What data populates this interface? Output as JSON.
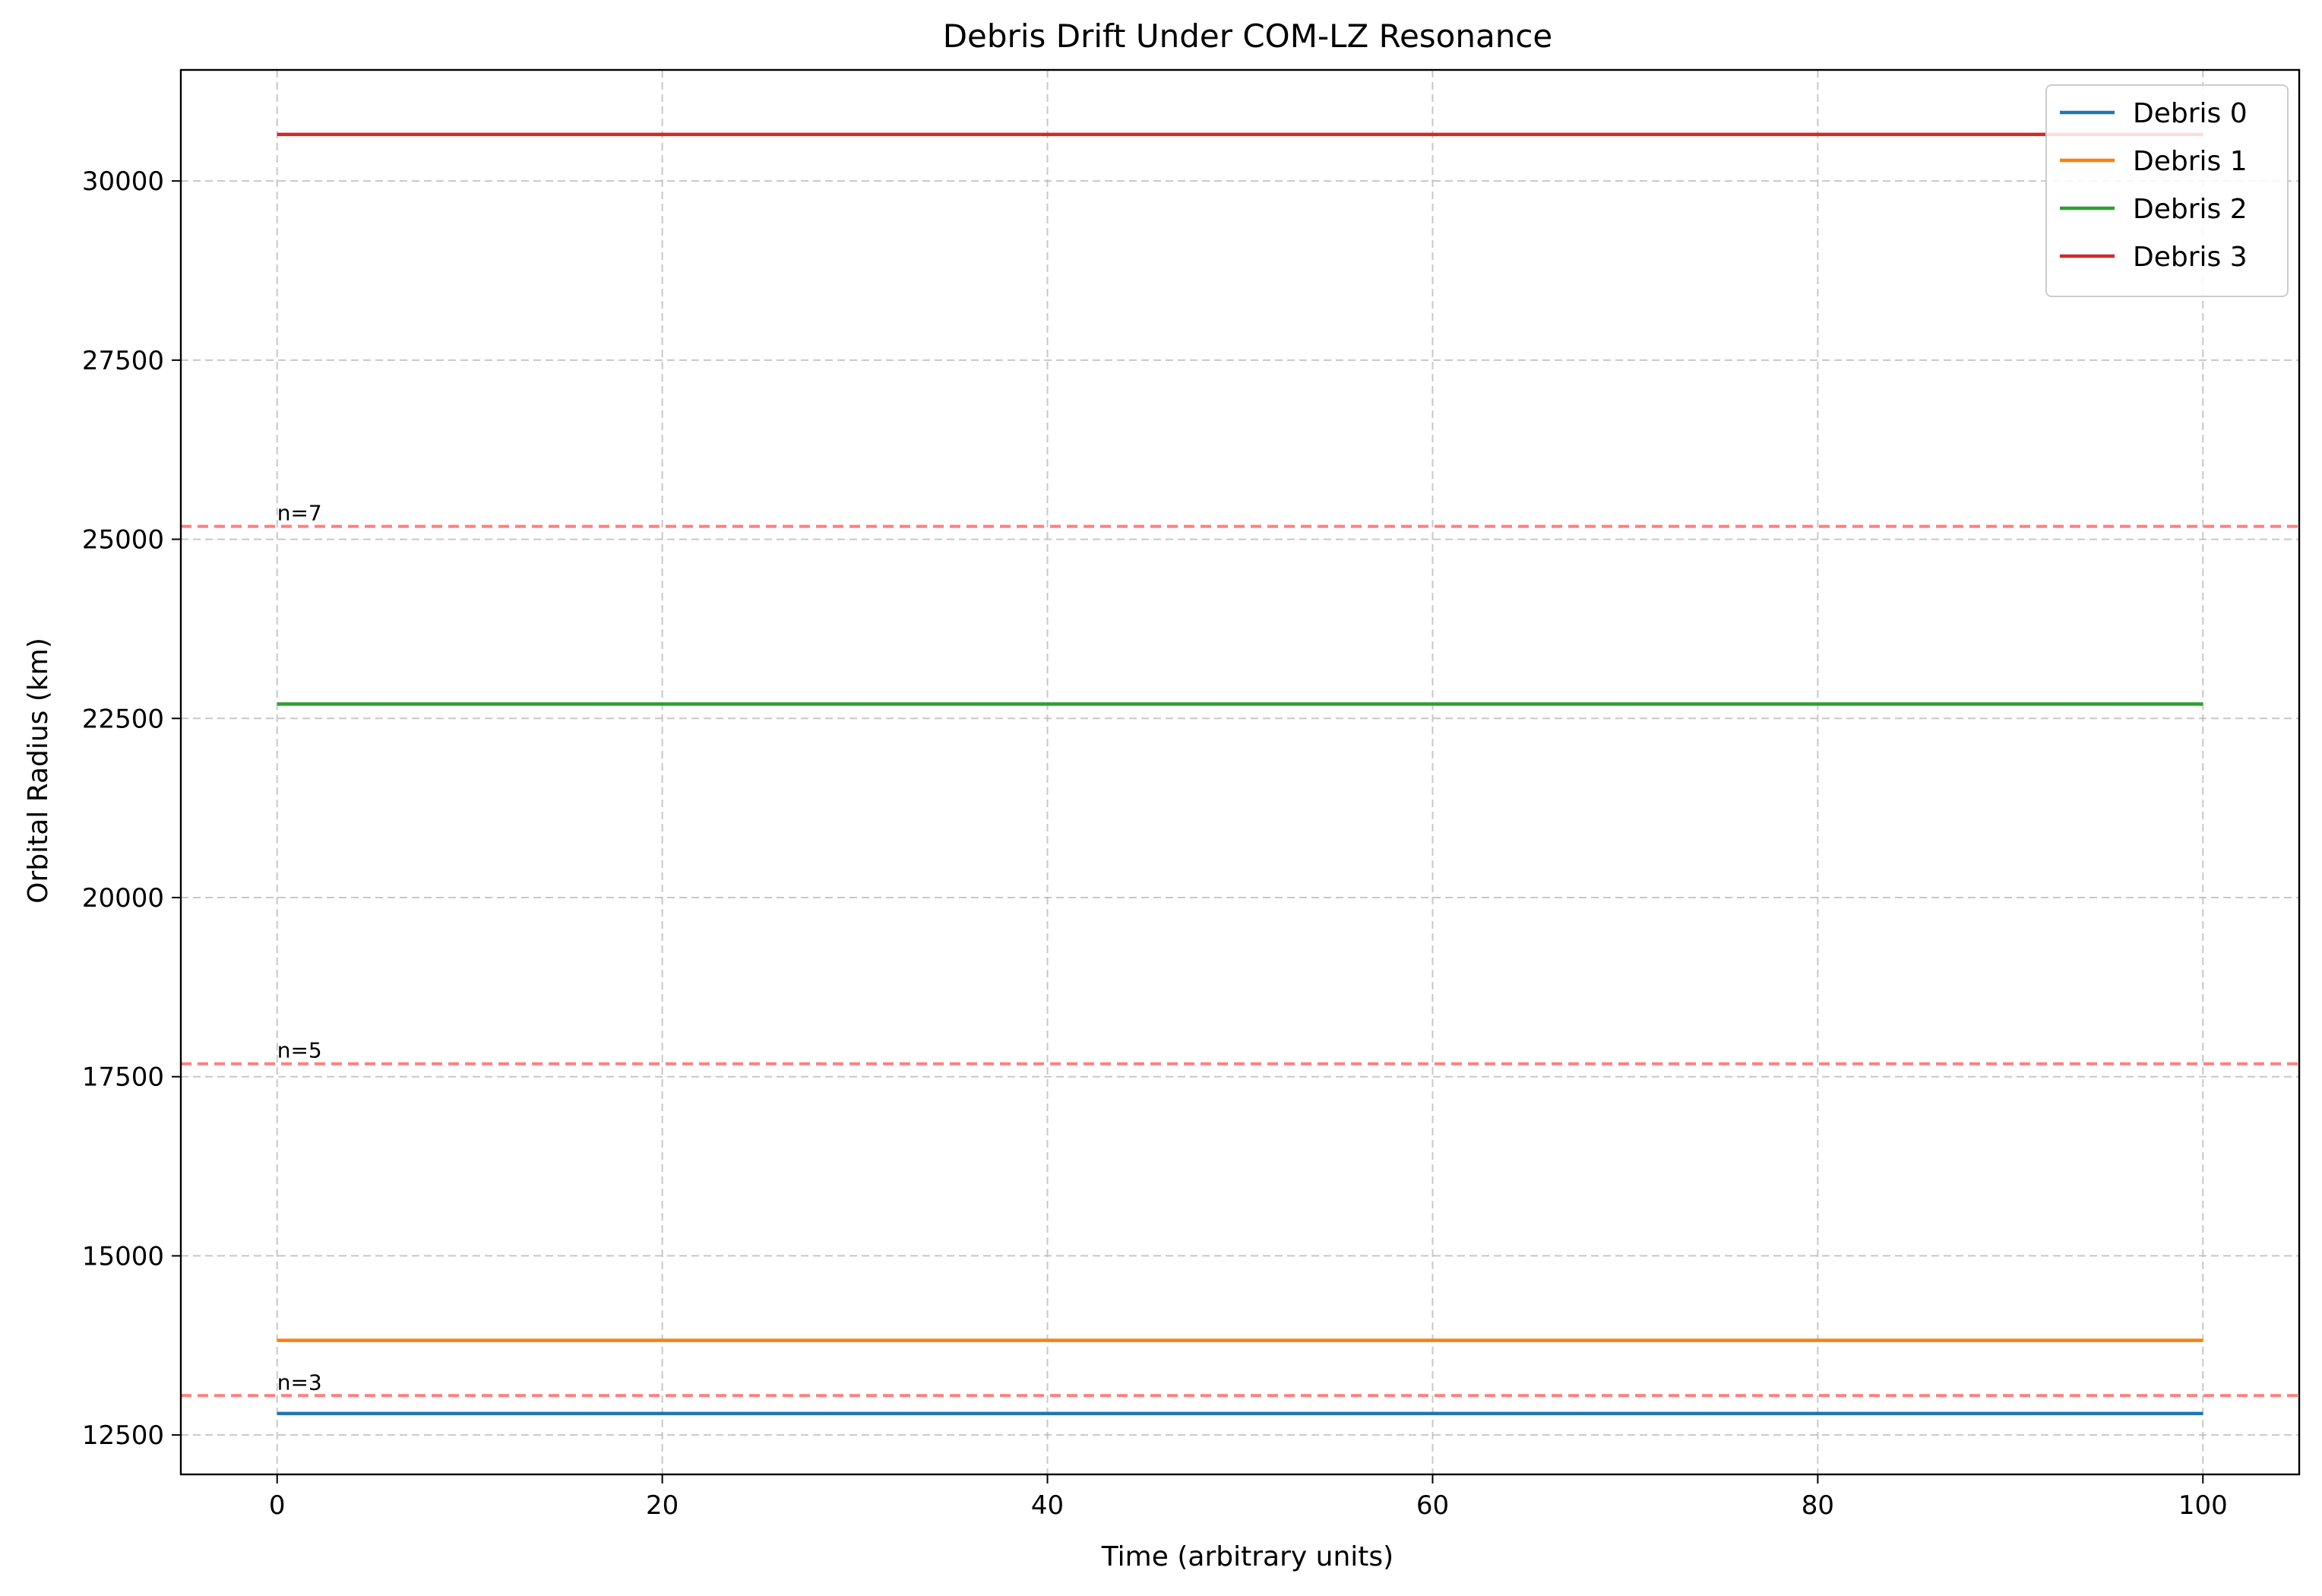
{
  "chart_data": {
    "type": "line",
    "title": "Debris Drift Under COM-LZ Resonance",
    "xlabel": "Time (arbitrary units)",
    "ylabel": "Orbital Radius (km)",
    "xlim": [
      -5,
      105
    ],
    "ylim": [
      11950,
      31550
    ],
    "x_ticks": [
      0,
      20,
      40,
      60,
      80,
      100
    ],
    "y_ticks": [
      12500,
      15000,
      17500,
      20000,
      22500,
      25000,
      27500,
      30000
    ],
    "grid": true,
    "legend_position": "top-right",
    "series": [
      {
        "name": "Debris 0",
        "color": "#1f77b4",
        "x": [
          0,
          100
        ],
        "values": [
          12800,
          12800
        ]
      },
      {
        "name": "Debris 1",
        "color": "#ff7f0e",
        "x": [
          0,
          100
        ],
        "values": [
          13820,
          13820
        ]
      },
      {
        "name": "Debris 2",
        "color": "#2ca02c",
        "x": [
          0,
          100
        ],
        "values": [
          22700,
          22700
        ]
      },
      {
        "name": "Debris 3",
        "color": "#d62728",
        "x": [
          0,
          100
        ],
        "values": [
          30650,
          30650
        ]
      }
    ],
    "reference_lines": [
      {
        "label": "n=3",
        "y": 13050,
        "color": "#ff7f7f",
        "style": "dashed"
      },
      {
        "label": "n=5",
        "y": 17680,
        "color": "#ff7f7f",
        "style": "dashed"
      },
      {
        "label": "n=7",
        "y": 25180,
        "color": "#ff7f7f",
        "style": "dashed"
      }
    ]
  }
}
